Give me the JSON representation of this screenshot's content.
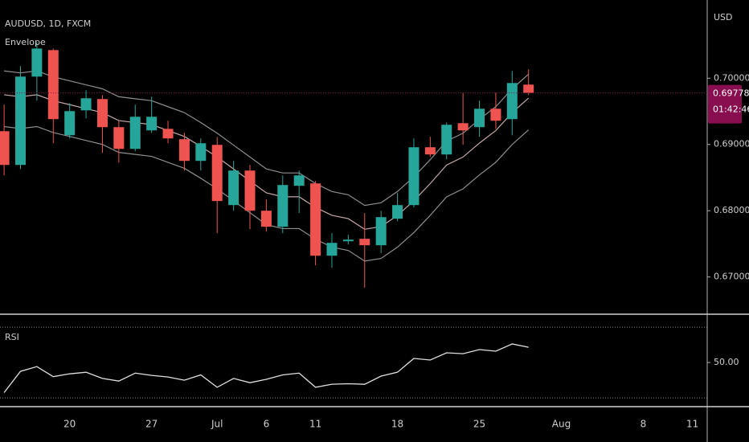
{
  "chart_data": [
    {
      "type": "candlestick",
      "title": "AUDUSD, 1D, FXCM",
      "currency": "USD",
      "x": [
        0,
        1,
        2,
        3,
        4,
        5,
        6,
        7,
        8,
        9,
        10,
        11,
        12,
        13,
        14,
        15,
        16,
        17,
        18,
        19,
        20,
        21,
        22,
        23,
        24,
        25,
        26,
        27,
        28,
        29,
        30,
        31,
        32
      ],
      "open": [
        0.692,
        0.68691,
        0.70024,
        0.70424,
        0.69139,
        0.69515,
        0.69685,
        0.69261,
        0.68933,
        0.69212,
        0.69236,
        0.69079,
        0.68752,
        0.68994,
        0.68085,
        0.68606,
        0.68,
        0.67758,
        0.68376,
        0.68412,
        0.67321,
        0.67539,
        0.67576,
        0.67479,
        0.67879,
        0.68085,
        0.68958,
        0.68849,
        0.69321,
        0.69261,
        0.69539,
        0.69382,
        0.69903
      ],
      "high": [
        0.696,
        0.70182,
        0.70545,
        0.70448,
        0.69624,
        0.69818,
        0.69745,
        0.69358,
        0.696,
        0.69721,
        0.69358,
        0.69176,
        0.69091,
        0.69115,
        0.68752,
        0.68691,
        0.6817,
        0.68533,
        0.68606,
        0.68449,
        0.67661,
        0.67636,
        0.67964,
        0.68,
        0.68267,
        0.69091,
        0.69115,
        0.69333,
        0.69782,
        0.69661,
        0.69782,
        0.70109,
        0.70133
      ],
      "low": [
        0.68533,
        0.6863,
        0.69661,
        0.69018,
        0.69091,
        0.69394,
        0.68873,
        0.68727,
        0.68897,
        0.69176,
        0.69018,
        0.68606,
        0.68606,
        0.67661,
        0.68,
        0.67721,
        0.67685,
        0.67661,
        0.67964,
        0.67176,
        0.67139,
        0.67491,
        0.66837,
        0.67358,
        0.67842,
        0.68049,
        0.68812,
        0.68776,
        0.68994,
        0.69115,
        0.69236,
        0.69139,
        0.69745
      ],
      "close": [
        0.68691,
        0.70024,
        0.70448,
        0.69382,
        0.69503,
        0.69697,
        0.69261,
        0.68933,
        0.69418,
        0.69418,
        0.69091,
        0.68752,
        0.69018,
        0.68146,
        0.68606,
        0.68,
        0.67758,
        0.68388,
        0.68533,
        0.67321,
        0.67515,
        0.67564,
        0.67479,
        0.67903,
        0.68085,
        0.68958,
        0.68849,
        0.69297,
        0.69212,
        0.69539,
        0.69358,
        0.69927,
        0.69778
      ],
      "up_color": "#26a69a",
      "down_color": "#ef5350",
      "envelope": {
        "label": "Envelope",
        "color": "#8e8e8e",
        "basis_color": "#c4a9a9",
        "upper": [
          0.7011,
          0.7008,
          0.7011,
          0.7002,
          0.6996,
          0.699,
          0.6984,
          0.6972,
          0.6969,
          0.6966,
          0.6957,
          0.6948,
          0.6933,
          0.6917,
          0.6899,
          0.6881,
          0.6863,
          0.6857,
          0.6857,
          0.6841,
          0.6829,
          0.6824,
          0.6808,
          0.6812,
          0.6829,
          0.6851,
          0.6877,
          0.6905,
          0.6917,
          0.6938,
          0.6957,
          0.6984,
          0.7006
        ],
        "basis": [
          0.6975,
          0.6972,
          0.6975,
          0.6966,
          0.696,
          0.6954,
          0.6948,
          0.6936,
          0.6933,
          0.693,
          0.6921,
          0.6912,
          0.6897,
          0.6881,
          0.6863,
          0.6845,
          0.6827,
          0.6821,
          0.6821,
          0.6805,
          0.6793,
          0.6788,
          0.6772,
          0.6776,
          0.6793,
          0.6815,
          0.6841,
          0.6869,
          0.6881,
          0.6902,
          0.6921,
          0.6948,
          0.697
        ],
        "lower": [
          0.6927,
          0.6924,
          0.6927,
          0.6918,
          0.6912,
          0.6906,
          0.69,
          0.6888,
          0.6885,
          0.6882,
          0.6873,
          0.6864,
          0.6849,
          0.6833,
          0.6815,
          0.6797,
          0.6779,
          0.6773,
          0.6773,
          0.6757,
          0.6745,
          0.674,
          0.6724,
          0.6728,
          0.6745,
          0.6767,
          0.6793,
          0.6821,
          0.6833,
          0.6854,
          0.6873,
          0.69,
          0.6922
        ]
      },
      "last_price": 0.69778,
      "countdown": "01:42:46",
      "last_price_color": "#880e4f",
      "xlim": [
        -0.25,
        42.9
      ],
      "ylim": [
        0.6645,
        0.7118
      ],
      "yticks": [
        {
          "value": 0.7,
          "label": "0.70000"
        },
        {
          "value": 0.69,
          "label": "0.69000"
        },
        {
          "value": 0.68,
          "label": "0.68000"
        },
        {
          "value": 0.67,
          "label": "0.67000"
        }
      ]
    },
    {
      "type": "line",
      "title": "RSI",
      "x": [
        0,
        1,
        2,
        3,
        4,
        5,
        6,
        7,
        8,
        9,
        10,
        11,
        12,
        13,
        14,
        15,
        16,
        17,
        18,
        19,
        20,
        21,
        22,
        23,
        24,
        25,
        26,
        27,
        28,
        29,
        30,
        31,
        32
      ],
      "values": [
        33,
        45,
        47.7,
        42,
        43.6,
        44.5,
        41,
        39.5,
        44,
        42.7,
        41.8,
        40,
        43,
        36,
        41,
        38.6,
        40.5,
        43,
        44,
        36,
        37.7,
        38,
        37.7,
        42.3,
        44.5,
        52.3,
        51.4,
        55.5,
        55,
        57.3,
        56.4,
        60.5,
        58.6
      ],
      "color": "#e0e0e0",
      "bands": [
        70,
        30
      ],
      "xlim": [
        -0.25,
        42.9
      ],
      "ylim": [
        25.5,
        76.4
      ],
      "yticks": [
        {
          "value": 50,
          "label": "50.00"
        }
      ],
      "xticks": [
        {
          "value": 4,
          "label": "20"
        },
        {
          "value": 9,
          "label": "27"
        },
        {
          "value": 13,
          "label": "Jul"
        },
        {
          "value": 16,
          "label": "6"
        },
        {
          "value": 19,
          "label": "11"
        },
        {
          "value": 24,
          "label": "18"
        },
        {
          "value": 29,
          "label": "25"
        },
        {
          "value": 34,
          "label": "Aug"
        },
        {
          "value": 39,
          "label": "8"
        },
        {
          "value": 42,
          "label": "11"
        }
      ]
    }
  ]
}
